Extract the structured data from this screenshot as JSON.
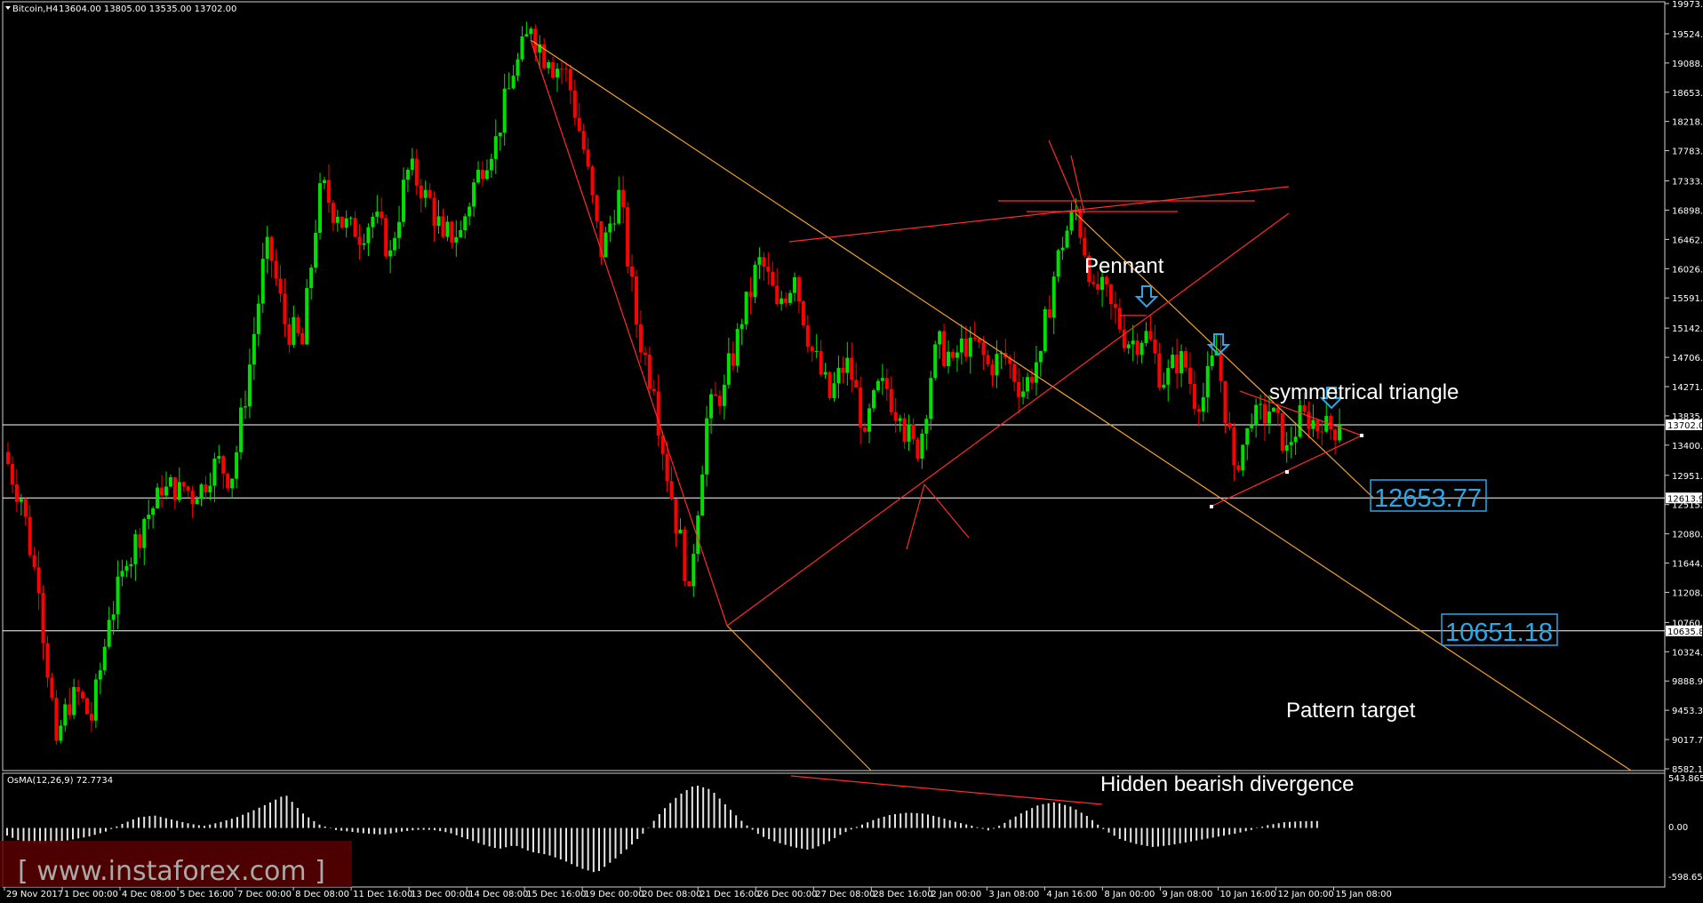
{
  "header": {
    "symbol": "Bitcoin,H4",
    "ohlc": "13604.00 13805.00 13535.00 13702.00"
  },
  "indicator": {
    "label": "OsMA(12,26,9) 72.7734",
    "ticks": [
      "543.8654",
      "0.00",
      "-598.6558"
    ]
  },
  "watermark": "[ www.instaforex.com ]",
  "chart_data": {
    "type": "candlestick",
    "price_axis": {
      "ylim": [
        8582.1,
        19973.7
      ],
      "ticks": [
        "19973.70",
        "19524.00",
        "19088.70",
        "18653.70",
        "18218.70",
        "17783.70",
        "17333.70",
        "16898.70",
        "16462.50",
        "16026.90",
        "15591.30",
        "15142.50",
        "14706.90",
        "14271.30",
        "13835.70",
        "13400.00",
        "12951.30",
        "12515.70",
        "12080.00",
        "11644.50",
        "11208.90",
        "10760.20",
        "10324.50",
        "9888.90",
        "9453.30",
        "9017.70",
        "8582.10"
      ],
      "current_price": 13702.0,
      "tagged_levels": [
        {
          "label": "13702.00",
          "value": 13702.0,
          "color": "#ffffff"
        },
        {
          "label": "12613.98",
          "value": 12613.98,
          "color": "#ffffff"
        },
        {
          "label": "10635.86",
          "value": 10635.86,
          "color": "#ffffff"
        }
      ]
    },
    "time_axis": [
      "29 Nov 2017",
      "1 Dec 00:00",
      "4 Dec 08:00",
      "5 Dec 16:00",
      "7 Dec 00:00",
      "8 Dec 08:00",
      "11 Dec 16:00",
      "13 Dec 00:00",
      "14 Dec 08:00",
      "15 Dec 16:00",
      "19 Dec 00:00",
      "20 Dec 08:00",
      "21 Dec 16:00",
      "26 Dec 00:00",
      "27 Dec 08:00",
      "28 Dec 16:00",
      "2 Jan 00:00",
      "3 Jan 08:00",
      "4 Jan 16:00",
      "8 Jan 00:00",
      "9 Jan 08:00",
      "10 Jan 16:00",
      "12 Jan 00:00",
      "15 Jan 08:00"
    ],
    "path": [
      13300,
      12600,
      11200,
      9000,
      9800,
      9300,
      10800,
      11600,
      12300,
      12650,
      12850,
      12600,
      13200,
      12900,
      14600,
      16500,
      15200,
      14900,
      17300,
      16800,
      16500,
      16800,
      16300,
      17500,
      17200,
      16500,
      16600,
      17500,
      18000,
      18900,
      19600,
      19100,
      19000,
      17800,
      16200,
      17200,
      15200,
      14200,
      12600,
      11300,
      13800,
      14300,
      15200,
      16200,
      15500,
      15900,
      14800,
      14100,
      14700,
      13600,
      14400,
      13800,
      13200,
      14900,
      14700,
      15000,
      14600,
      14700,
      14200,
      14800,
      16300,
      16900,
      15800,
      15500,
      14900,
      15100,
      14300,
      14800,
      13900,
      14800,
      13100,
      13700,
      13900,
      13400,
      13900,
      13600,
      13702
    ],
    "indicator_ylim": [
      -598.6558,
      543.8654
    ],
    "osma": [
      -80,
      -150,
      -160,
      -150,
      -120,
      -90,
      -40,
      40,
      110,
      130,
      90,
      50,
      20,
      60,
      110,
      180,
      260,
      350,
      160,
      40,
      -20,
      -40,
      -60,
      -70,
      -40,
      -20,
      -20,
      -50,
      -110,
      -170,
      -220,
      -180,
      -250,
      -280,
      -340,
      -420,
      -470,
      -340,
      -200,
      -30,
      180,
      340,
      450,
      400,
      220,
      50,
      -80,
      -150,
      -200,
      -230,
      -160,
      -60,
      20,
      90,
      140,
      160,
      150,
      110,
      60,
      20,
      -30,
      60,
      160,
      240,
      270,
      220,
      120,
      -20,
      -120,
      -170,
      -200,
      -180,
      -150,
      -120,
      -90,
      -60,
      -20,
      30,
      60,
      70,
      72.77
    ],
    "annotations": [
      {
        "label": "Pennant"
      },
      {
        "label": "symmetrical triangle"
      },
      {
        "label": "Pattern target"
      },
      {
        "label": "Hidden bearish divergence"
      },
      {
        "label": "12653.77",
        "value": 12653.77
      },
      {
        "label": "10651.18",
        "value": 10651.18
      }
    ],
    "colors": {
      "up": "#00e000",
      "down": "#ff0000",
      "trend": "#ff2a2a",
      "channel": "#f0a030",
      "level": "#2ba6e6",
      "osma": "#e6e6e6"
    }
  }
}
